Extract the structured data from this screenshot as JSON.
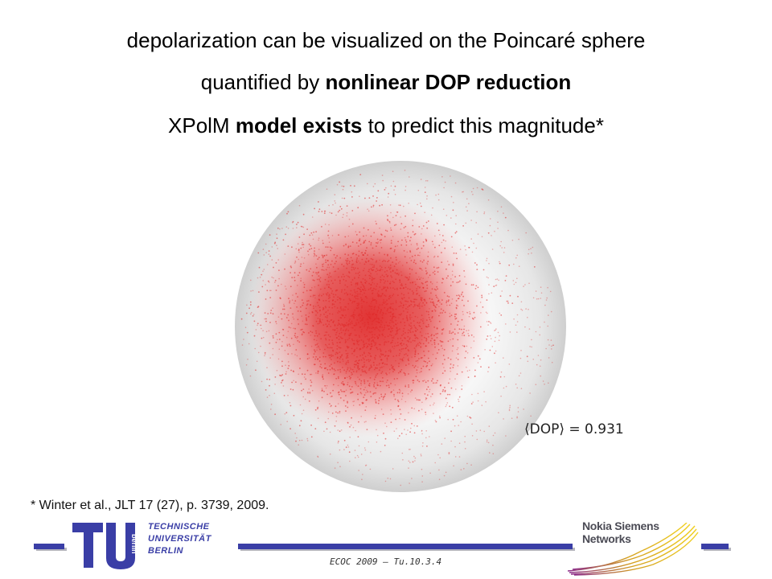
{
  "title": {
    "line1": "depolarization can be visualized on the Poincaré sphere",
    "line2_pre": "quantified by ",
    "line2_bold": "nonlinear DOP reduction",
    "line3_pre": "XPolM ",
    "line3_bold": "model exists",
    "line3_post": " to predict this magnitude*"
  },
  "figure": {
    "dop_annotation": "⟨DOP⟩ = 0.931",
    "sphere_color": "#e0e0e0",
    "point_color": "#e02a2a"
  },
  "footnote": "* Winter et al., JLT 17 (27), p. 3739, 2009.",
  "footer": {
    "university_lines": [
      "TECHNISCHE",
      "UNIVERSITÄT",
      "BERLIN"
    ],
    "logo_word": "berlin",
    "reference": "ECOC 2009 – Tu.10.3.4",
    "company_lines": [
      "Nokia Siemens",
      "Networks"
    ],
    "accent_color": "#3a3ea6"
  }
}
